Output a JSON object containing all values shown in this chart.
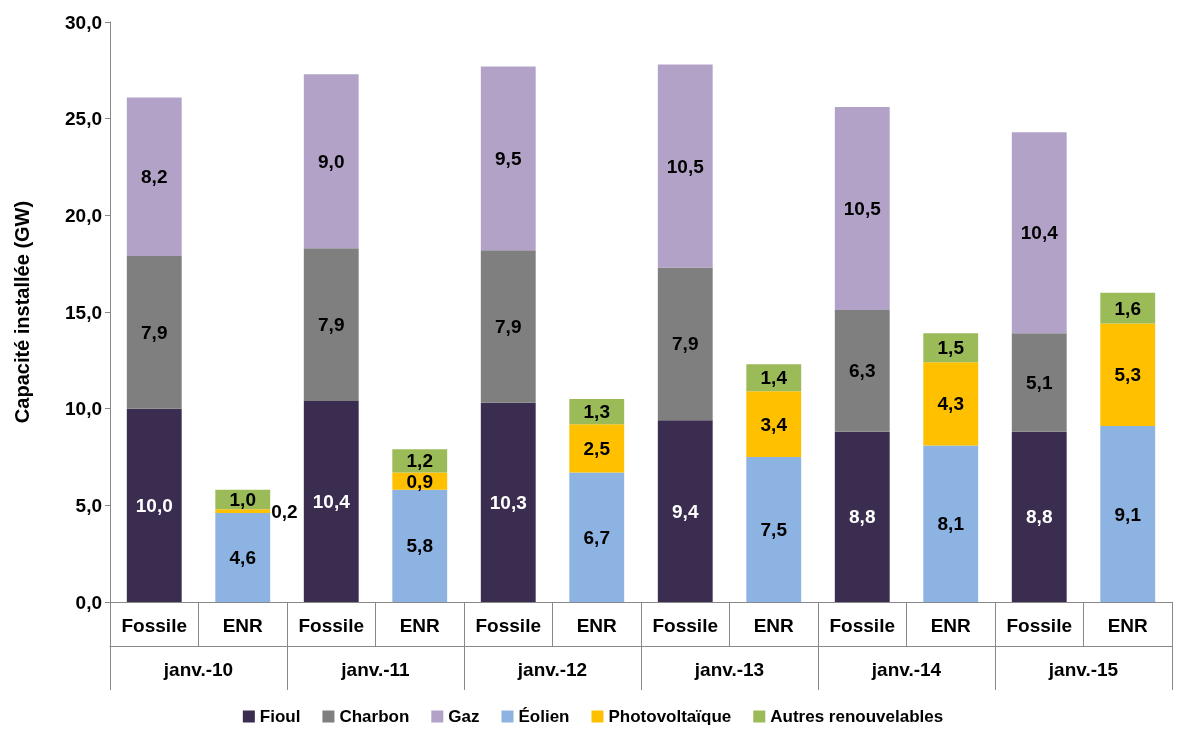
{
  "chart_data": {
    "type": "bar",
    "stacked": true,
    "ylabel": "Capacité installée (GW)",
    "categories": [
      "Fossile",
      "ENR",
      "Fossile",
      "ENR",
      "Fossile",
      "ENR",
      "Fossile",
      "ENR",
      "Fossile",
      "ENR",
      "Fossile",
      "ENR"
    ],
    "annotations": [
      "janv.-10",
      "janv.-11",
      "janv.-12",
      "janv.-13",
      "janv.-14",
      "janv.-15"
    ],
    "series": [
      {
        "name": "Fioul",
        "color": "#3b2d4f",
        "values": [
          10.0,
          null,
          10.4,
          null,
          10.3,
          null,
          9.4,
          null,
          8.8,
          null,
          8.8,
          null
        ],
        "value_labels": [
          "10,0",
          null,
          "10,4",
          null,
          "10,3",
          null,
          "9,4",
          null,
          "8,8",
          null,
          "8,8",
          null
        ]
      },
      {
        "name": "Charbon",
        "color": "#7f7f7f",
        "values": [
          7.9,
          null,
          7.9,
          null,
          7.9,
          null,
          7.9,
          null,
          6.3,
          null,
          5.1,
          null
        ],
        "value_labels": [
          "7,9",
          null,
          "7,9",
          null,
          "7,9",
          null,
          "7,9",
          null,
          "6,3",
          null,
          "5,1",
          null
        ]
      },
      {
        "name": "Gaz",
        "color": "#b3a2c7",
        "values": [
          8.2,
          null,
          9.0,
          null,
          9.5,
          null,
          10.5,
          null,
          10.5,
          null,
          10.4,
          null
        ],
        "value_labels": [
          "8,2",
          null,
          "9,0",
          null,
          "9,5",
          null,
          "10,5",
          null,
          "10,5",
          null,
          "10,4",
          null
        ]
      },
      {
        "name": "Éolien",
        "color": "#8db3e2",
        "values": [
          null,
          4.6,
          null,
          5.8,
          null,
          6.7,
          null,
          7.5,
          null,
          8.1,
          null,
          9.1
        ],
        "value_labels": [
          null,
          "4,6",
          null,
          "5,8",
          null,
          "6,7",
          null,
          "7,5",
          null,
          "8,1",
          null,
          "9,1"
        ]
      },
      {
        "name": "Photovoltaïque",
        "color": "#ffc000",
        "values": [
          null,
          0.2,
          null,
          0.9,
          null,
          2.5,
          null,
          3.4,
          null,
          4.3,
          null,
          5.3
        ],
        "value_labels": [
          null,
          "0,2",
          null,
          "0,9",
          null,
          "2,5",
          null,
          "3,4",
          null,
          "4,3",
          null,
          "5,3"
        ]
      },
      {
        "name": "Autres renouvelables",
        "color": "#9bbb59",
        "values": [
          null,
          1.0,
          null,
          1.2,
          null,
          1.3,
          null,
          1.4,
          null,
          1.5,
          null,
          1.6
        ],
        "value_labels": [
          null,
          "1,0",
          null,
          "1,2",
          null,
          "1,3",
          null,
          "1,4",
          null,
          "1,5",
          null,
          "1,6"
        ]
      }
    ],
    "ylim": [
      0,
      30
    ],
    "yticks": [
      {
        "value": 0,
        "label": "0,0"
      },
      {
        "value": 5,
        "label": "5,0"
      },
      {
        "value": 10,
        "label": "10,0"
      },
      {
        "value": 15,
        "label": "15,0"
      },
      {
        "value": 20,
        "label": "20,0"
      },
      {
        "value": 25,
        "label": "25,0"
      },
      {
        "value": 30,
        "label": "30,0"
      }
    ],
    "grid": false,
    "legend": "bottom",
    "marker": "square"
  }
}
